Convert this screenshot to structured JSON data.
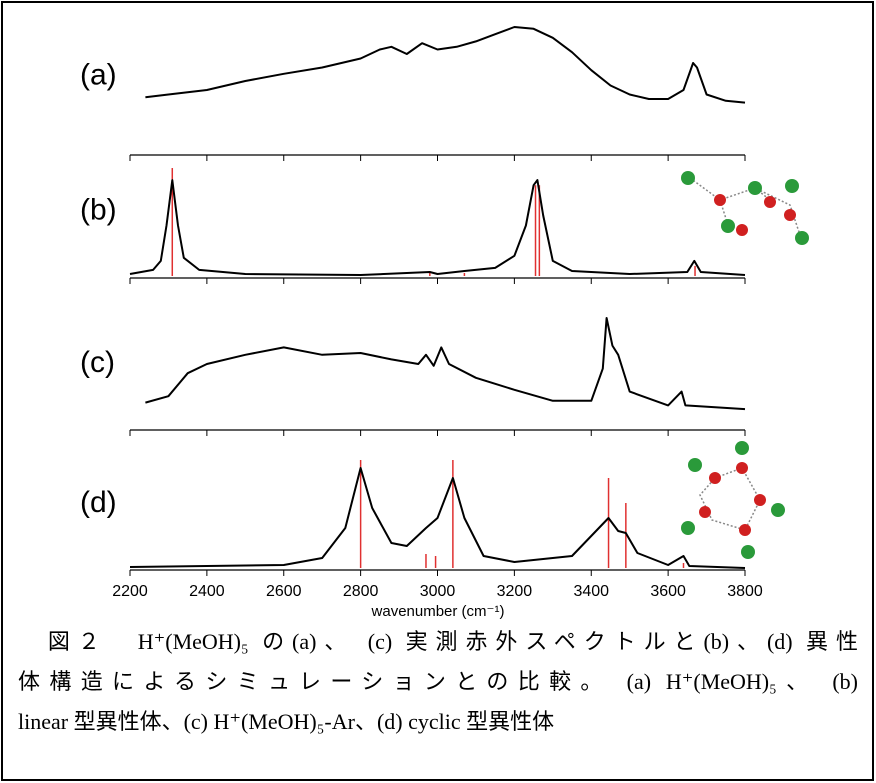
{
  "chart_data": [
    {
      "type": "line",
      "label": "(a)",
      "color": "#000000",
      "xlim": [
        2200,
        3800
      ],
      "ylim": [
        0,
        1
      ],
      "x": [
        2240,
        2300,
        2400,
        2500,
        2600,
        2700,
        2800,
        2850,
        2880,
        2920,
        2960,
        3000,
        3050,
        3100,
        3150,
        3200,
        3250,
        3300,
        3350,
        3400,
        3450,
        3500,
        3550,
        3600,
        3640,
        3665,
        3675,
        3700,
        3750,
        3800
      ],
      "values": [
        0.12,
        0.15,
        0.2,
        0.3,
        0.38,
        0.45,
        0.55,
        0.65,
        0.68,
        0.6,
        0.72,
        0.65,
        0.68,
        0.74,
        0.82,
        0.9,
        0.88,
        0.78,
        0.62,
        0.42,
        0.25,
        0.15,
        0.1,
        0.1,
        0.2,
        0.5,
        0.45,
        0.15,
        0.08,
        0.06
      ]
    },
    {
      "type": "line",
      "label": "(b)",
      "color": "#000000",
      "xlim": [
        2200,
        3800
      ],
      "ylim": [
        0,
        1.1
      ],
      "x": [
        2200,
        2260,
        2280,
        2295,
        2310,
        2325,
        2340,
        2380,
        2500,
        2800,
        2980,
        3000,
        3070,
        3150,
        3200,
        3230,
        3250,
        3260,
        3275,
        3300,
        3350,
        3500,
        3650,
        3668,
        3685,
        3800
      ],
      "values": [
        0.02,
        0.06,
        0.15,
        0.5,
        0.95,
        0.5,
        0.18,
        0.06,
        0.02,
        0.01,
        0.04,
        0.02,
        0.05,
        0.08,
        0.2,
        0.5,
        0.9,
        0.95,
        0.6,
        0.15,
        0.05,
        0.02,
        0.04,
        0.15,
        0.04,
        0.01
      ],
      "sticks": {
        "color": "#e03030",
        "x": [
          2310,
          3255,
          3265,
          2980,
          3070,
          3670
        ],
        "values": [
          1.07,
          0.9,
          0.9,
          0.03,
          0.03,
          0.1
        ]
      }
    },
    {
      "type": "line",
      "label": "(c)",
      "color": "#000000",
      "xlim": [
        2200,
        3800
      ],
      "ylim": [
        0,
        1
      ],
      "x": [
        2240,
        2300,
        2350,
        2400,
        2500,
        2600,
        2700,
        2800,
        2880,
        2950,
        2970,
        2990,
        3010,
        3030,
        3100,
        3200,
        3300,
        3400,
        3430,
        3440,
        3455,
        3470,
        3500,
        3600,
        3635,
        3645,
        3800
      ],
      "values": [
        0.08,
        0.15,
        0.4,
        0.5,
        0.6,
        0.68,
        0.6,
        0.62,
        0.55,
        0.5,
        0.6,
        0.48,
        0.68,
        0.5,
        0.35,
        0.22,
        0.1,
        0.1,
        0.45,
        1.0,
        0.7,
        0.6,
        0.2,
        0.05,
        0.2,
        0.05,
        0.01
      ]
    },
    {
      "type": "line",
      "label": "(d)",
      "color": "#000000",
      "xlim": [
        2200,
        3800
      ],
      "ylim": [
        0,
        1.1
      ],
      "x": [
        2200,
        2600,
        2700,
        2760,
        2800,
        2830,
        2880,
        2920,
        2970,
        3000,
        3040,
        3070,
        3120,
        3200,
        3350,
        3420,
        3445,
        3470,
        3490,
        3520,
        3600,
        3640,
        3655,
        3800
      ],
      "values": [
        0.01,
        0.03,
        0.1,
        0.4,
        1.0,
        0.6,
        0.25,
        0.22,
        0.4,
        0.5,
        0.9,
        0.5,
        0.12,
        0.06,
        0.12,
        0.4,
        0.5,
        0.37,
        0.35,
        0.15,
        0.03,
        0.12,
        0.02,
        0
      ],
      "sticks": {
        "color": "#e03030",
        "x": [
          2800,
          2970,
          2995,
          3040,
          3445,
          3490,
          3640
        ],
        "values": [
          1.08,
          0.14,
          0.12,
          1.08,
          0.9,
          0.65,
          0.05
        ]
      },
      "xticks": [
        2200,
        2400,
        2600,
        2800,
        3000,
        3200,
        3400,
        3600,
        3800
      ],
      "xlabel": "wavenumber (cm⁻¹)"
    }
  ],
  "caption": {
    "lines": [
      "　図２　H⁺(MeOH)₅ の(a)、 (c) 実測赤外スペクトルと(b)、(d) 異性",
      "体構造によるシミュレーションとの比較。 (a) H⁺(MeOH)₅、 (b)",
      "linear 型異性体、(c) H⁺(MeOH)₅-Ar、(d) cyclic 型異性体"
    ]
  }
}
